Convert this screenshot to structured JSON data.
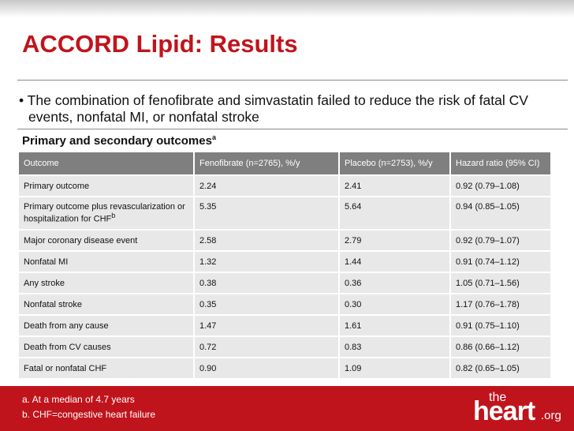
{
  "title": "ACCORD Lipid: Results",
  "bullet": "• The combination of fenofibrate and simvastatin failed to reduce the risk of fatal CV events, nonfatal MI, or nonfatal stroke",
  "subtitle": {
    "text": "Primary and secondary outcomes",
    "note": "a"
  },
  "table": {
    "header": [
      "Outcome",
      "Fenofibrate (n=2765), %/y",
      "Placebo (n=2753), %/y",
      "Hazard ratio (95% CI)"
    ],
    "rows": [
      {
        "outcome": "Primary outcome",
        "fenofibrate": "2.24",
        "placebo": "2.41",
        "hazard_ratio": "0.92 (0.79–1.08)"
      },
      {
        "outcome": "Primary outcome plus revascularization or hospitalization for CHF",
        "note": "b",
        "fenofibrate": "5.35",
        "placebo": "5.64",
        "hazard_ratio": "0.94 (0.85–1.05)"
      },
      {
        "outcome": "Major coronary disease event",
        "fenofibrate": "2.58",
        "placebo": "2.79",
        "hazard_ratio": "0.92 (0.79–1.07)"
      },
      {
        "outcome": "Nonfatal MI",
        "fenofibrate": "1.32",
        "placebo": "1.44",
        "hazard_ratio": "0.91 (0.74–1.12)"
      },
      {
        "outcome": "Any stroke",
        "fenofibrate": "0.38",
        "placebo": "0.36",
        "hazard_ratio": "1.05 (0.71–1.56)"
      },
      {
        "outcome": "Nonfatal stroke",
        "fenofibrate": "0.35",
        "placebo": "0.30",
        "hazard_ratio": "1.17 (0.76–1.78)"
      },
      {
        "outcome": "Death from any cause",
        "fenofibrate": "1.47",
        "placebo": "1.61",
        "hazard_ratio": "0.91 (0.75–1.10)"
      },
      {
        "outcome": "Death from CV causes",
        "fenofibrate": "0.72",
        "placebo": "0.83",
        "hazard_ratio": "0.86 (0.66–1.12)"
      },
      {
        "outcome": "Fatal or nonfatal CHF",
        "fenofibrate": "0.90",
        "placebo": "1.09",
        "hazard_ratio": "0.82 (0.65–1.05)"
      }
    ]
  },
  "footnotes": [
    "a. At a median of 4.7 years",
    "b. CHF=congestive heart failure"
  ],
  "logo": {
    "the": "the",
    "heart": "heart",
    "org": ".org"
  }
}
